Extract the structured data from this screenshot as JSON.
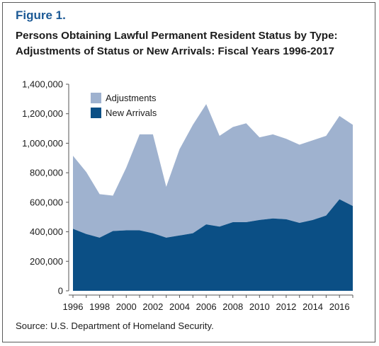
{
  "figure_label": "Figure 1.",
  "title_line1": "Persons Obtaining Lawful Permanent Resident Status by Type:",
  "title_line2": "Adjustments of Status or New Arrivals: Fiscal Years 1996-2017",
  "source": "Source: U.S. Department of Homeland Security.",
  "colors": {
    "adjustments": "#9fb2cf",
    "new_arrivals": "#0b4f85",
    "title_accent": "#1c5a96"
  },
  "chart_data": {
    "type": "area",
    "stacked": true,
    "x": [
      1996,
      1997,
      1998,
      1999,
      2000,
      2001,
      2002,
      2003,
      2004,
      2005,
      2006,
      2007,
      2008,
      2009,
      2010,
      2011,
      2012,
      2013,
      2014,
      2015,
      2016,
      2017
    ],
    "series": [
      {
        "name": "New Arrivals",
        "values": [
          420000,
          385000,
          360000,
          405000,
          410000,
          410000,
          390000,
          360000,
          375000,
          390000,
          450000,
          435000,
          465000,
          465000,
          480000,
          490000,
          485000,
          460000,
          480000,
          510000,
          620000,
          575000
        ]
      },
      {
        "name": "Adjustments",
        "values": [
          495000,
          420000,
          295000,
          240000,
          425000,
          650000,
          670000,
          345000,
          585000,
          735000,
          815000,
          615000,
          645000,
          670000,
          560000,
          570000,
          545000,
          530000,
          540000,
          540000,
          565000,
          550000
        ]
      }
    ],
    "ylim": [
      0,
      1400000
    ],
    "yticks": [
      0,
      200000,
      400000,
      600000,
      800000,
      1000000,
      1200000,
      1400000
    ],
    "ytick_labels": [
      "0",
      "200,000",
      "400,000",
      "600,000",
      "800,000",
      "1,000,000",
      "1,200,000",
      "1,400,000"
    ],
    "xticks": [
      1996,
      1998,
      2000,
      2002,
      2004,
      2006,
      2008,
      2010,
      2012,
      2014,
      2016
    ],
    "xtick_labels": [
      "1996",
      "1998",
      "2000",
      "2002",
      "2004",
      "2006",
      "2008",
      "2010",
      "2012",
      "2014",
      "2016"
    ],
    "legend": [
      "Adjustments",
      "New Arrivals"
    ],
    "legend_placement": "top-left",
    "grid": false
  }
}
